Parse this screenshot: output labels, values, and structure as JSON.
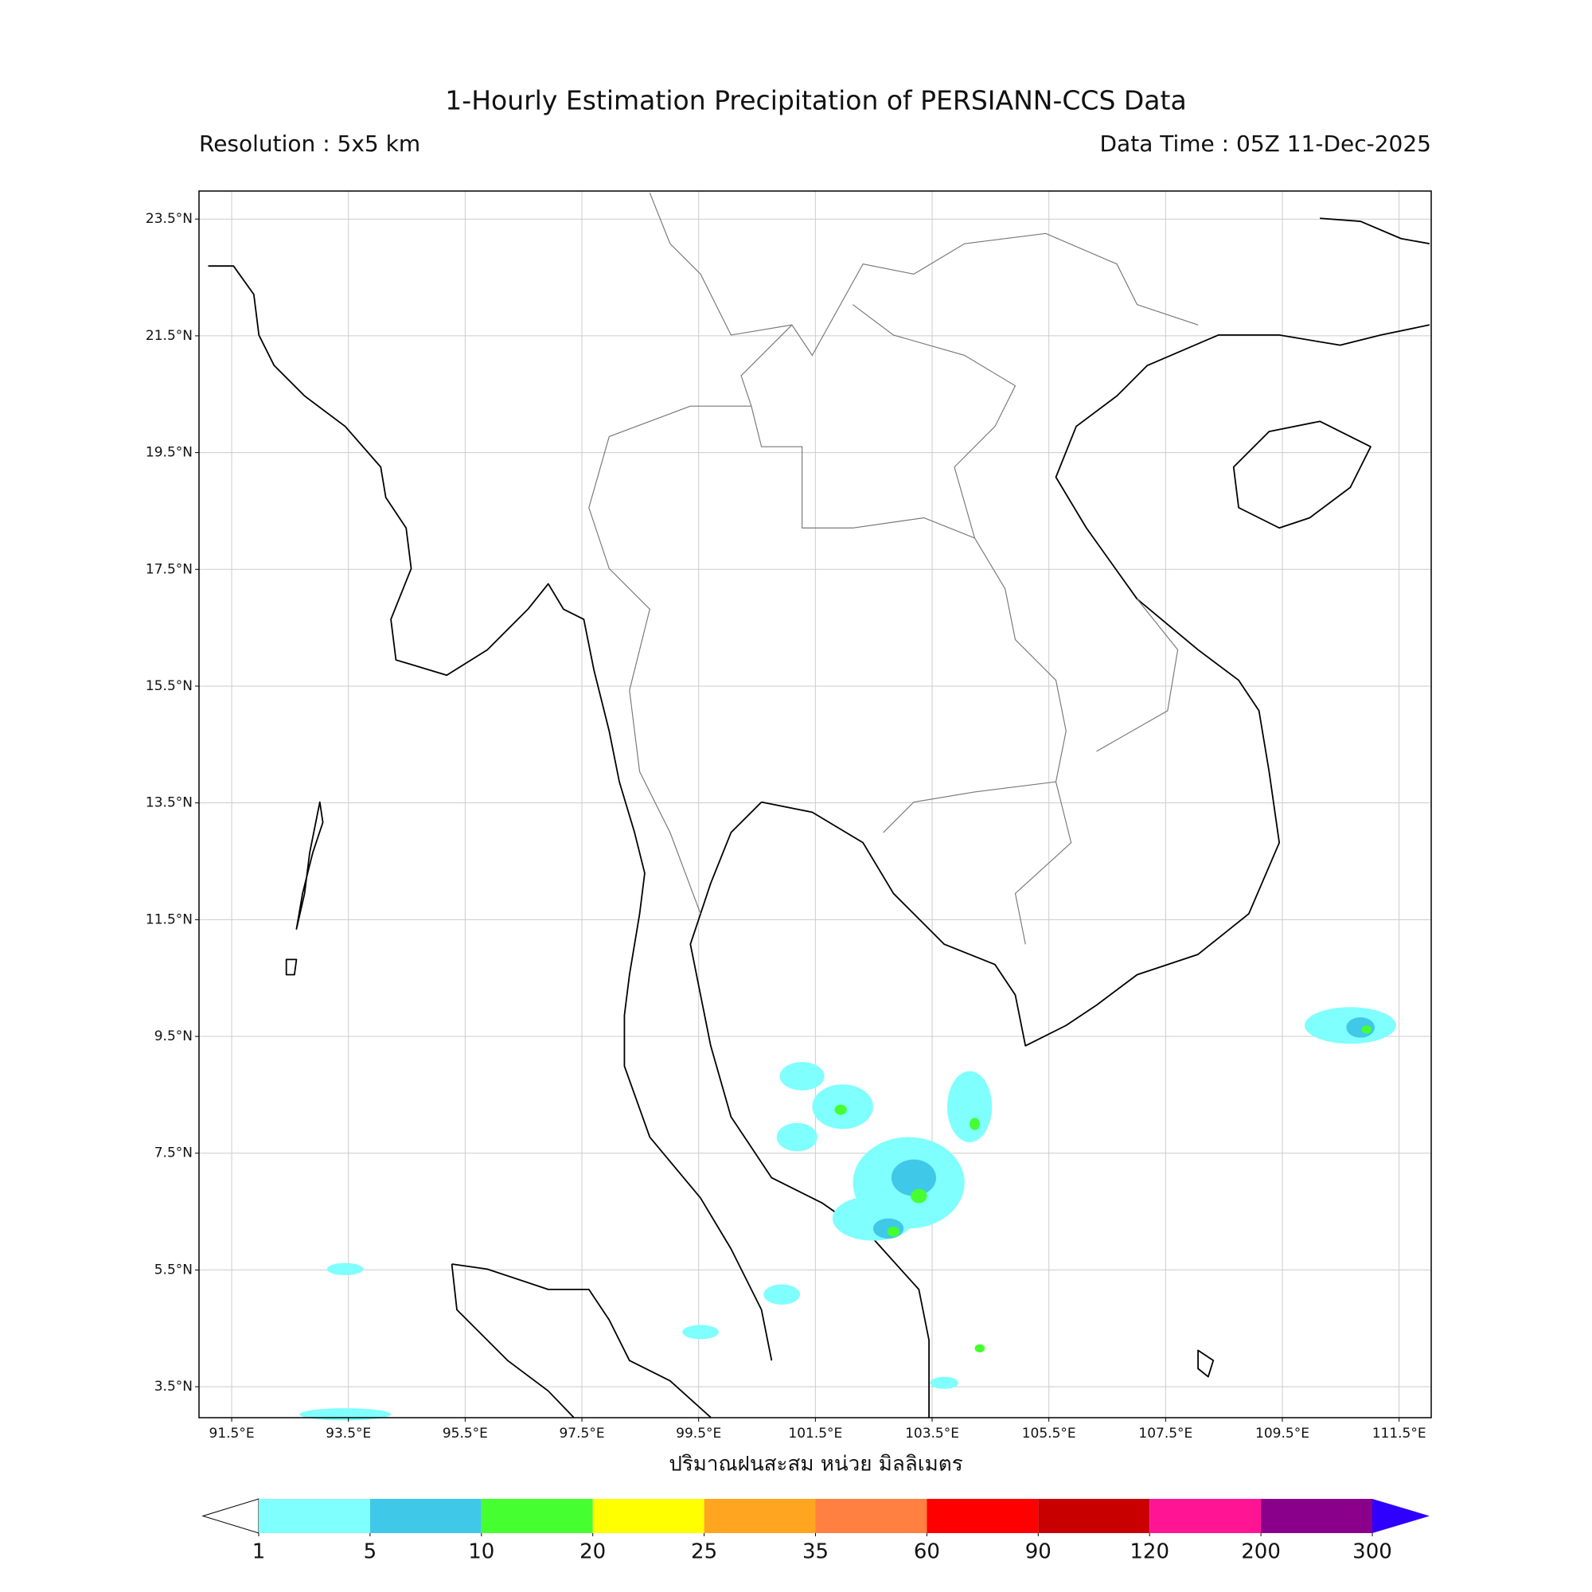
{
  "title": "1-Hourly Estimation Precipitation of PERSIANN-CCS Data",
  "resolution": "Resolution : 5x5 km",
  "data_time": "Data Time : 05Z 11-Dec-2025",
  "map": {
    "latlim": [
      2.97,
      23.98
    ],
    "lonlim": [
      90.94,
      112.05
    ],
    "lat_ticks": [
      {
        "value": 23.5,
        "label": "23.5°N"
      },
      {
        "value": 21.5,
        "label": "21.5°N"
      },
      {
        "value": 19.5,
        "label": "19.5°N"
      },
      {
        "value": 17.5,
        "label": "17.5°N"
      },
      {
        "value": 15.5,
        "label": "15.5°N"
      },
      {
        "value": 13.5,
        "label": "13.5°N"
      },
      {
        "value": 11.5,
        "label": "11.5°N"
      },
      {
        "value": 9.5,
        "label": "9.5°N"
      },
      {
        "value": 7.5,
        "label": "7.5°N"
      },
      {
        "value": 5.5,
        "label": "5.5°N"
      },
      {
        "value": 3.5,
        "label": "3.5°N"
      }
    ],
    "lon_ticks": [
      {
        "value": 91.5,
        "label": "91.5°E"
      },
      {
        "value": 93.5,
        "label": "93.5°E"
      },
      {
        "value": 95.5,
        "label": "95.5°E"
      },
      {
        "value": 97.5,
        "label": "97.5°E"
      },
      {
        "value": 99.5,
        "label": "99.5°E"
      },
      {
        "value": 101.5,
        "label": "101.5°E"
      },
      {
        "value": 103.5,
        "label": "103.5°E"
      },
      {
        "value": 105.5,
        "label": "105.5°E"
      },
      {
        "value": 107.5,
        "label": "107.5°E"
      },
      {
        "value": 109.5,
        "label": "109.5°E"
      },
      {
        "value": 111.5,
        "label": "111.5°E"
      }
    ],
    "grid": true
  },
  "xlabel": "ปริมาณฝนสะสม หน่วย มิลลิเมตร",
  "colorbar": {
    "levels": [
      1,
      5,
      10,
      20,
      25,
      35,
      60,
      90,
      120,
      200,
      300
    ],
    "colors": [
      "#80ffff",
      "#40c8e8",
      "#45ff30",
      "#ffff00",
      "#ffa520",
      "#ff8040",
      "#ff0000",
      "#c80000",
      "#ff1493",
      "#8b008b"
    ],
    "extend_color": "#3000ff"
  }
}
